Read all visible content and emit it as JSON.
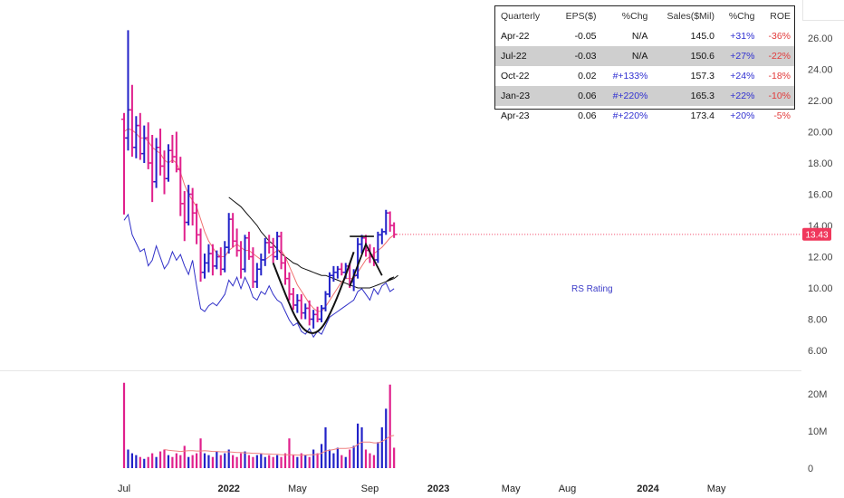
{
  "chart_data": [
    {
      "type": "candlestick",
      "title": "",
      "y_ticks": [
        "26.00",
        "24.00",
        "22.00",
        "20.00",
        "18.00",
        "16.00",
        "14.00",
        "12.00",
        "10.00",
        "8.00",
        "6.00"
      ],
      "y_tick_values": [
        26,
        24,
        22,
        20,
        18,
        16,
        14,
        12,
        10,
        8,
        6
      ],
      "ylim": [
        5.3,
        27.3
      ],
      "last_price": "13.43",
      "last_price_value": 13.43,
      "bar_width_weeks": 1,
      "bars": [
        {
          "x": 0,
          "o": 20.8,
          "h": 21.2,
          "l": 14.7,
          "c": 19.6
        },
        {
          "x": 1,
          "o": 19.6,
          "h": 26.5,
          "l": 18.8,
          "c": 21.4
        },
        {
          "x": 2,
          "o": 21.4,
          "h": 23.0,
          "l": 18.4,
          "c": 19.0
        },
        {
          "x": 3,
          "o": 19.0,
          "h": 21.0,
          "l": 18.3,
          "c": 20.4
        },
        {
          "x": 4,
          "o": 20.4,
          "h": 21.2,
          "l": 18.2,
          "c": 18.6
        },
        {
          "x": 5,
          "o": 18.6,
          "h": 20.4,
          "l": 18.0,
          "c": 19.6
        },
        {
          "x": 6,
          "o": 19.6,
          "h": 20.6,
          "l": 17.6,
          "c": 18.0
        },
        {
          "x": 7,
          "o": 18.0,
          "h": 19.8,
          "l": 15.5,
          "c": 16.8
        },
        {
          "x": 8,
          "o": 16.8,
          "h": 19.6,
          "l": 16.4,
          "c": 19.0
        },
        {
          "x": 9,
          "o": 19.0,
          "h": 20.2,
          "l": 17.2,
          "c": 17.8
        },
        {
          "x": 10,
          "o": 17.8,
          "h": 18.8,
          "l": 16.0,
          "c": 17.0
        },
        {
          "x": 11,
          "o": 17.0,
          "h": 19.2,
          "l": 16.8,
          "c": 18.8
        },
        {
          "x": 12,
          "o": 18.8,
          "h": 19.8,
          "l": 18.0,
          "c": 18.4
        },
        {
          "x": 13,
          "o": 18.4,
          "h": 20.0,
          "l": 17.4,
          "c": 17.6
        },
        {
          "x": 14,
          "o": 17.6,
          "h": 18.4,
          "l": 14.6,
          "c": 15.4
        },
        {
          "x": 15,
          "o": 15.4,
          "h": 16.2,
          "l": 13.0,
          "c": 14.2
        },
        {
          "x": 16,
          "o": 14.2,
          "h": 16.6,
          "l": 14.0,
          "c": 16.0
        },
        {
          "x": 17,
          "o": 16.0,
          "h": 16.4,
          "l": 14.0,
          "c": 14.8
        },
        {
          "x": 18,
          "o": 14.8,
          "h": 15.4,
          "l": 12.8,
          "c": 13.4
        },
        {
          "x": 19,
          "o": 13.4,
          "h": 13.8,
          "l": 10.4,
          "c": 11.0
        },
        {
          "x": 20,
          "o": 11.0,
          "h": 12.2,
          "l": 10.6,
          "c": 11.6
        },
        {
          "x": 21,
          "o": 11.6,
          "h": 12.8,
          "l": 11.0,
          "c": 12.2
        },
        {
          "x": 22,
          "o": 12.2,
          "h": 12.8,
          "l": 10.8,
          "c": 11.4
        },
        {
          "x": 23,
          "o": 11.4,
          "h": 12.4,
          "l": 11.2,
          "c": 12.0
        },
        {
          "x": 24,
          "o": 12.0,
          "h": 12.6,
          "l": 10.8,
          "c": 11.2
        },
        {
          "x": 25,
          "o": 11.2,
          "h": 13.0,
          "l": 11.0,
          "c": 12.6
        },
        {
          "x": 26,
          "o": 12.6,
          "h": 14.8,
          "l": 12.2,
          "c": 14.4
        },
        {
          "x": 27,
          "o": 14.4,
          "h": 14.8,
          "l": 12.6,
          "c": 13.0
        },
        {
          "x": 28,
          "o": 13.0,
          "h": 13.8,
          "l": 12.0,
          "c": 12.4
        },
        {
          "x": 29,
          "o": 12.4,
          "h": 13.0,
          "l": 10.6,
          "c": 11.2
        },
        {
          "x": 30,
          "o": 11.2,
          "h": 13.4,
          "l": 11.0,
          "c": 13.2
        },
        {
          "x": 31,
          "o": 13.2,
          "h": 13.6,
          "l": 11.8,
          "c": 12.0
        },
        {
          "x": 32,
          "o": 12.0,
          "h": 12.6,
          "l": 10.0,
          "c": 10.4
        },
        {
          "x": 33,
          "o": 10.4,
          "h": 11.6,
          "l": 10.0,
          "c": 11.2
        },
        {
          "x": 34,
          "o": 11.2,
          "h": 12.2,
          "l": 10.8,
          "c": 11.8
        },
        {
          "x": 35,
          "o": 11.8,
          "h": 13.2,
          "l": 11.4,
          "c": 12.9
        },
        {
          "x": 36,
          "o": 12.9,
          "h": 13.4,
          "l": 12.2,
          "c": 12.6
        },
        {
          "x": 37,
          "o": 12.6,
          "h": 13.2,
          "l": 11.6,
          "c": 12.0
        },
        {
          "x": 38,
          "o": 12.0,
          "h": 13.6,
          "l": 11.8,
          "c": 13.3
        },
        {
          "x": 39,
          "o": 13.3,
          "h": 13.6,
          "l": 11.2,
          "c": 11.6
        },
        {
          "x": 40,
          "o": 11.6,
          "h": 12.0,
          "l": 10.2,
          "c": 10.6
        },
        {
          "x": 41,
          "o": 10.6,
          "h": 11.0,
          "l": 9.2,
          "c": 9.6
        },
        {
          "x": 42,
          "o": 9.6,
          "h": 10.0,
          "l": 8.6,
          "c": 8.9
        },
        {
          "x": 43,
          "o": 8.9,
          "h": 9.6,
          "l": 8.4,
          "c": 9.2
        },
        {
          "x": 44,
          "o": 9.2,
          "h": 9.6,
          "l": 8.0,
          "c": 8.4
        },
        {
          "x": 45,
          "o": 8.4,
          "h": 9.0,
          "l": 8.0,
          "c": 8.7
        },
        {
          "x": 46,
          "o": 8.7,
          "h": 9.2,
          "l": 7.6,
          "c": 8.0
        },
        {
          "x": 47,
          "o": 8.0,
          "h": 8.6,
          "l": 7.4,
          "c": 8.3
        },
        {
          "x": 48,
          "o": 8.3,
          "h": 8.8,
          "l": 7.8,
          "c": 8.0
        },
        {
          "x": 49,
          "o": 8.0,
          "h": 8.9,
          "l": 7.8,
          "c": 8.7
        },
        {
          "x": 50,
          "o": 8.7,
          "h": 9.8,
          "l": 8.5,
          "c": 9.6
        },
        {
          "x": 51,
          "o": 9.6,
          "h": 11.0,
          "l": 9.4,
          "c": 10.8
        },
        {
          "x": 52,
          "o": 10.8,
          "h": 11.4,
          "l": 10.4,
          "c": 11.0
        },
        {
          "x": 53,
          "o": 11.0,
          "h": 11.4,
          "l": 10.6,
          "c": 11.2
        },
        {
          "x": 54,
          "o": 11.2,
          "h": 11.6,
          "l": 10.8,
          "c": 11.0
        },
        {
          "x": 55,
          "o": 11.0,
          "h": 11.6,
          "l": 10.6,
          "c": 11.4
        },
        {
          "x": 56,
          "o": 11.4,
          "h": 11.6,
          "l": 10.0,
          "c": 10.4
        },
        {
          "x": 57,
          "o": 10.4,
          "h": 11.2,
          "l": 9.8,
          "c": 10.8
        },
        {
          "x": 58,
          "o": 10.8,
          "h": 13.2,
          "l": 10.6,
          "c": 12.8
        },
        {
          "x": 59,
          "o": 12.8,
          "h": 13.4,
          "l": 12.2,
          "c": 13.2
        },
        {
          "x": 60,
          "o": 13.2,
          "h": 13.4,
          "l": 12.0,
          "c": 12.4
        },
        {
          "x": 61,
          "o": 12.4,
          "h": 12.8,
          "l": 11.6,
          "c": 12.0
        },
        {
          "x": 62,
          "o": 12.0,
          "h": 12.6,
          "l": 11.4,
          "c": 11.8
        },
        {
          "x": 63,
          "o": 11.8,
          "h": 13.6,
          "l": 11.6,
          "c": 13.4
        },
        {
          "x": 64,
          "o": 13.4,
          "h": 13.8,
          "l": 12.8,
          "c": 13.6
        },
        {
          "x": 65,
          "o": 13.6,
          "h": 15.0,
          "l": 13.4,
          "c": 14.8
        },
        {
          "x": 66,
          "o": 14.8,
          "h": 14.9,
          "l": 13.6,
          "c": 14.0
        },
        {
          "x": 67,
          "o": 14.0,
          "h": 14.2,
          "l": 13.2,
          "c": 13.43
        }
      ],
      "sma_fast": [
        20.0,
        20.2,
        20.1,
        19.9,
        19.6,
        19.6,
        19.4,
        19.0,
        18.8,
        18.6,
        18.2,
        18.0,
        18.2,
        18.0,
        17.4,
        16.6,
        16.0,
        15.6,
        15.2,
        14.4,
        13.6,
        13.0,
        12.6,
        12.2,
        12.0,
        12.0,
        12.4,
        12.6,
        12.8,
        12.6,
        12.4,
        12.4,
        12.2,
        12.0,
        11.8,
        11.8,
        12.0,
        12.2,
        12.4,
        12.4,
        12.0,
        11.4,
        10.8,
        10.2,
        9.8,
        9.4,
        9.0,
        8.7,
        8.5,
        8.5,
        8.8,
        9.2,
        9.6,
        10.0,
        10.4,
        10.6,
        10.6,
        10.6,
        11.0,
        11.4,
        11.8,
        12.0,
        12.2,
        12.4,
        12.6,
        12.9,
        13.2,
        13.4
      ],
      "sma_slow": {
        "start_x": 26,
        "values": [
          15.8,
          15.6,
          15.4,
          15.2,
          14.9,
          14.6,
          14.3,
          14.0,
          13.6,
          13.3,
          13.0,
          12.8,
          12.5,
          12.2,
          12.0,
          11.8,
          11.6,
          11.5,
          11.3,
          11.2,
          11.1,
          11.0,
          10.9,
          10.8,
          10.8,
          10.7,
          10.6,
          10.5,
          10.4,
          10.3,
          10.2,
          10.1,
          10.0,
          10.0,
          10.0,
          10.0,
          10.1,
          10.2,
          10.3,
          10.4,
          10.6,
          10.7
        ]
      },
      "slow_sma_extension": [
        [
          65,
          10.4
        ],
        [
          67,
          10.6
        ],
        [
          68,
          10.8
        ]
      ],
      "rs_line_label": "RS Rating",
      "rs_line_scale": [
        4.0,
        12.0
      ],
      "rs_line": [
        13.2,
        13.6,
        12.2,
        11.6,
        11.0,
        11.2,
        10.0,
        10.4,
        11.4,
        10.6,
        9.8,
        10.2,
        11.0,
        10.4,
        10.8,
        10.0,
        9.4,
        10.4,
        8.6,
        7.0,
        6.8,
        7.2,
        7.4,
        7.2,
        7.6,
        8.0,
        9.0,
        8.6,
        9.2,
        8.4,
        9.2,
        8.6,
        7.8,
        7.6,
        8.2,
        8.0,
        8.6,
        8.0,
        7.6,
        7.4,
        6.8,
        6.2,
        5.8,
        6.0,
        5.4,
        5.2,
        5.6,
        5.0,
        5.4,
        5.2,
        5.8,
        6.4,
        6.6,
        6.8,
        7.0,
        7.2,
        7.4,
        7.6,
        8.2,
        8.4,
        8.0,
        7.6,
        8.4,
        8.0,
        8.6,
        8.8,
        8.2,
        8.4
      ],
      "pattern_overlays": {
        "cup": [
          [
            37,
            11.6
          ],
          [
            40,
            9.6
          ],
          [
            43,
            7.8
          ],
          [
            46,
            7.0
          ],
          [
            49,
            7.3
          ],
          [
            52,
            8.8
          ],
          [
            55,
            10.8
          ],
          [
            57,
            12.3
          ]
        ],
        "handle_top": [
          [
            56,
            13.3
          ],
          [
            62,
            13.3
          ]
        ],
        "handle": [
          [
            56,
            10.1
          ],
          [
            60,
            12.8
          ],
          [
            64,
            10.8
          ]
        ]
      }
    },
    {
      "type": "bar",
      "title": "",
      "y_ticks": [
        "20M",
        "10M",
        "0"
      ],
      "y_tick_values": [
        20,
        10,
        0
      ],
      "ylim": [
        0,
        24
      ],
      "unit": "M",
      "volume": [
        23.0,
        5.0,
        4.0,
        3.5,
        3.0,
        2.5,
        3.0,
        4.0,
        3.0,
        4.5,
        5.0,
        3.5,
        3.0,
        4.0,
        3.5,
        6.0,
        3.0,
        3.5,
        4.0,
        8.0,
        4.0,
        3.5,
        3.0,
        4.5,
        3.5,
        4.0,
        5.0,
        3.5,
        3.0,
        4.0,
        4.5,
        3.5,
        3.0,
        3.5,
        4.0,
        3.0,
        3.5,
        3.0,
        3.5,
        3.0,
        4.0,
        8.0,
        3.5,
        3.0,
        4.0,
        3.5,
        3.0,
        5.0,
        4.0,
        6.5,
        11.0,
        5.0,
        4.0,
        5.5,
        3.5,
        3.0,
        5.0,
        6.0,
        12.0,
        11.0,
        5.0,
        4.0,
        3.5,
        7.0,
        11.0,
        16.0,
        22.5,
        5.5
      ],
      "volume_up": [
        false,
        true,
        true,
        true,
        false,
        true,
        false,
        false,
        true,
        false,
        false,
        true,
        false,
        false,
        false,
        false,
        true,
        false,
        false,
        false,
        true,
        true,
        false,
        true,
        false,
        true,
        true,
        false,
        false,
        false,
        true,
        false,
        false,
        true,
        true,
        true,
        false,
        false,
        true,
        false,
        false,
        false,
        false,
        true,
        false,
        true,
        false,
        true,
        false,
        true,
        true,
        true,
        true,
        true,
        false,
        true,
        false,
        true,
        true,
        true,
        false,
        false,
        false,
        true,
        true,
        true,
        false,
        false
      ],
      "volume_ma": [
        null,
        null,
        null,
        null,
        null,
        null,
        null,
        null,
        null,
        null,
        5.0,
        4.8,
        4.7,
        4.6,
        4.5,
        4.6,
        4.7,
        4.7,
        4.6,
        4.6,
        4.7,
        4.6,
        4.5,
        4.5,
        4.4,
        4.4,
        4.4,
        4.3,
        4.2,
        4.2,
        4.1,
        4.1,
        4.0,
        4.0,
        3.9,
        3.8,
        3.8,
        3.7,
        3.7,
        3.6,
        3.6,
        3.6,
        3.6,
        3.5,
        3.5,
        3.5,
        3.6,
        3.6,
        3.7,
        4.0,
        4.6,
        4.8,
        5.0,
        5.3,
        5.3,
        5.3,
        5.4,
        5.6,
        6.4,
        7.0,
        7.0,
        7.0,
        6.8,
        6.8,
        7.2,
        7.8,
        8.6,
        8.8
      ]
    }
  ],
  "x_axis": {
    "labels": [
      "Jul",
      "2022",
      "May",
      "Sep",
      "2023",
      "May",
      "Aug",
      "2024",
      "May"
    ],
    "bold": [
      false,
      true,
      false,
      false,
      true,
      false,
      false,
      true,
      false
    ],
    "week_index": [
      0,
      26,
      43,
      61,
      78,
      96,
      110,
      130,
      147
    ]
  },
  "fundamentals_table": {
    "headers": [
      "Quarterly",
      "EPS($)",
      "%Chg",
      "Sales($Mil)",
      "%Chg",
      "ROE"
    ],
    "rows": [
      {
        "q": "Apr-22",
        "eps": "-0.05",
        "eps_chg": "N/A",
        "sales": "145.0",
        "sales_chg": "+31%",
        "roe": "-36%",
        "shaded": false
      },
      {
        "q": "Jul-22",
        "eps": "-0.03",
        "eps_chg": "N/A",
        "sales": "150.6",
        "sales_chg": "+27%",
        "roe": "-22%",
        "shaded": true
      },
      {
        "q": "Oct-22",
        "eps": "0.02",
        "eps_chg": "#+133%",
        "sales": "157.3",
        "sales_chg": "+24%",
        "roe": "-18%",
        "shaded": false
      },
      {
        "q": "Jan-23",
        "eps": "0.06",
        "eps_chg": "#+220%",
        "sales": "165.3",
        "sales_chg": "+22%",
        "roe": "-10%",
        "shaded": true
      },
      {
        "q": "Apr-23",
        "eps": "0.06",
        "eps_chg": "#+220%",
        "sales": "173.4",
        "sales_chg": "+20%",
        "roe": "-5%",
        "shaded": false
      }
    ]
  },
  "colors": {
    "up": "#2222c8",
    "down": "#e0208c",
    "sma_fast": "#f07070",
    "sma_slow": "#111111",
    "rs_line": "#3030c8",
    "volume_ma": "#f08080",
    "last_price_bg": "#f0385c",
    "axis_text": "#444444"
  }
}
